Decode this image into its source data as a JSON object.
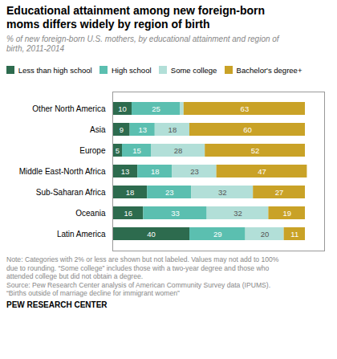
{
  "chart_data": {
    "type": "bar",
    "orientation": "horizontal",
    "stacked": true,
    "title": "Educational attainment among new foreign-born\nmoms differs widely by region of birth",
    "subtitle": "% of new foreign-born U.S. mothers, by educational attainment and region of\nbirth, 2011-2014",
    "annotations": [
      "Note: Categories with 2% or less are shown but not labeled. Values may not add to 100%\ndue to rounding. “Some college” includes those with a two-year degree and those who\nattended college but did not obtain a degree.\nSource: Pew Research Center analysis of American Community Survey data (IPUMS).\n“Births outside of marriage decline for immigrant women”",
      "PEW RESEARCH CENTER"
    ],
    "categories": [
      "Other North America",
      "Asia",
      "Europe",
      "Middle East-North Africa",
      "Sub-Saharan Africa",
      "Oceania",
      "Latin America"
    ],
    "series": [
      {
        "name": "Less than high school",
        "color": "#2d6b4e",
        "values": [
          10,
          9,
          5,
          13,
          18,
          16,
          40
        ]
      },
      {
        "name": "High school",
        "color": "#5bbfb0",
        "values": [
          25,
          13,
          15,
          18,
          23,
          33,
          29
        ]
      },
      {
        "name": "Some college",
        "color": "#b2dfd8",
        "values": [
          2,
          18,
          28,
          23,
          32,
          32,
          20
        ],
        "value_labels": [
          null,
          "18",
          "28",
          "23",
          "32",
          "32",
          "20"
        ]
      },
      {
        "name": "Bachelor's degree+",
        "color": "#c9a227",
        "values": [
          63,
          60,
          52,
          47,
          27,
          19,
          11
        ]
      }
    ],
    "xlim": [
      0,
      110
    ],
    "tick_labels": "y",
    "data_labels": true,
    "legend": "top",
    "grid": false
  }
}
